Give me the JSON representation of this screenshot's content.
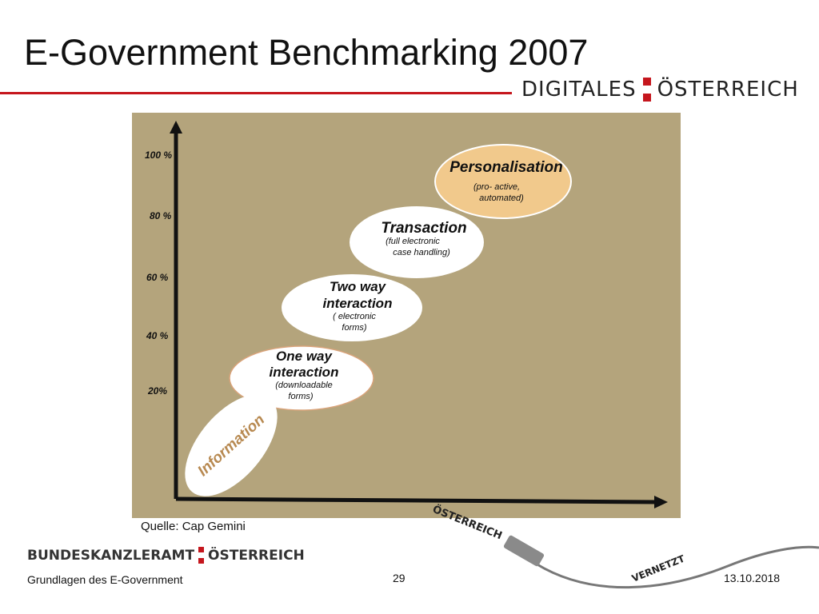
{
  "title": "E-Government Benchmarking 2007",
  "logo_top": {
    "left": "DIGITALES",
    "right": "ÖSTERREICH"
  },
  "logo_bottom": {
    "left": "BUNDESKANZLERAMT",
    "right": "ÖSTERREICH"
  },
  "source": "Quelle: Cap Gemini",
  "footer": {
    "left": "Grundlagen des E-Government",
    "page": "29",
    "date": "13.10.2018"
  },
  "decoration": {
    "text1": "ÖSTERREICH",
    "text2": "VERNETZT"
  },
  "colors": {
    "accent_red": "#c5161d",
    "panel": "#b4a47c",
    "personalisation_fill": "#f1c98c",
    "stage_fill": "#ffffff"
  },
  "chart_data": {
    "type": "diagram",
    "y_ticks": [
      "100 %",
      "80 %",
      "60 %",
      "40 %",
      "20%"
    ],
    "stages": [
      {
        "title": "Information",
        "detail": []
      },
      {
        "title": [
          "One way",
          "interaction"
        ],
        "detail": [
          "(downloadable",
          "forms)"
        ]
      },
      {
        "title": [
          "Two way",
          "interaction"
        ],
        "detail": [
          "( electronic",
          "forms)"
        ]
      },
      {
        "title": [
          "Transaction"
        ],
        "detail": [
          "(full electronic",
          "case handling)"
        ]
      },
      {
        "title": [
          "Personalisation"
        ],
        "detail": [
          "(pro- active,",
          "automated)"
        ]
      }
    ]
  }
}
